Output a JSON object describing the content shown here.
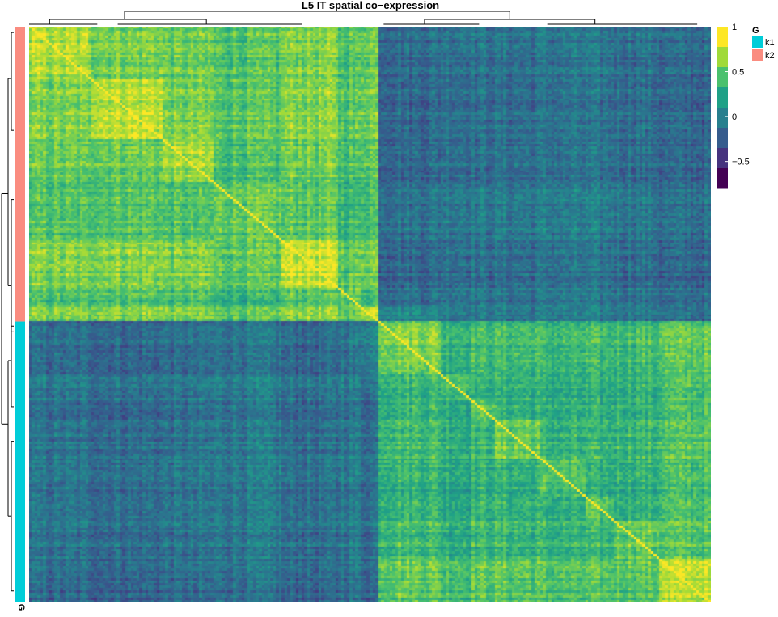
{
  "chart_data": {
    "type": "heatmap",
    "title": "L5 IT spatial co−expression",
    "colorbar": {
      "ticks": [
        {
          "value": 1,
          "label": "1"
        },
        {
          "value": 0.5,
          "label": "0.5"
        },
        {
          "value": 0,
          "label": "0"
        },
        {
          "value": -0.5,
          "label": "−0.5"
        }
      ],
      "range": [
        -0.8,
        1.0
      ],
      "colors": [
        "#440154",
        "#46337e",
        "#365c8d",
        "#277f8e",
        "#1fa187",
        "#4ac16d",
        "#a0da39",
        "#fde725"
      ]
    },
    "annotation": {
      "title": "G",
      "row_label": "G",
      "groups": [
        {
          "name": "k1",
          "color": "#00cdd8"
        },
        {
          "name": "k2",
          "color": "#fa8c80"
        }
      ]
    },
    "blocks": {
      "k2_within_mean": 0.55,
      "k1_within_mean": 0.45,
      "between_mean": -0.15,
      "diagonal": 1.0
    }
  }
}
